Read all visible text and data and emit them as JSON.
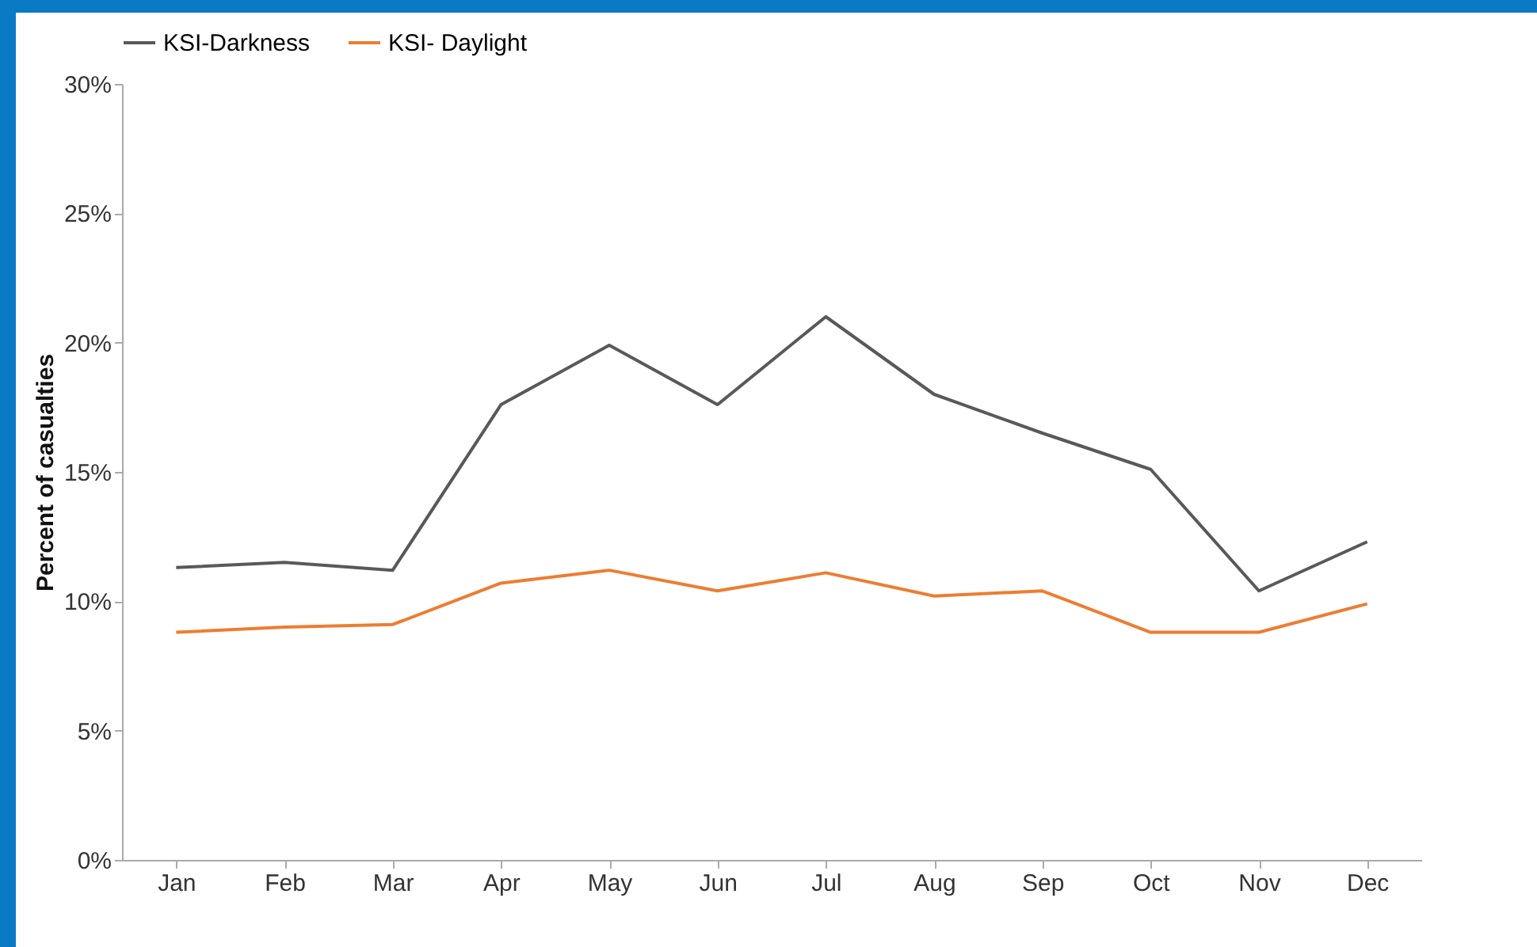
{
  "chart_data": {
    "type": "line",
    "ylabel": "Percent of casualties",
    "categories": [
      "Jan",
      "Feb",
      "Mar",
      "Apr",
      "May",
      "Jun",
      "Jul",
      "Aug",
      "Sep",
      "Oct",
      "Nov",
      "Dec"
    ],
    "series": [
      {
        "name": "KSI-Darkness",
        "color": "#595959",
        "values": [
          11.3,
          11.5,
          11.2,
          17.6,
          19.9,
          17.6,
          21.0,
          18.0,
          16.5,
          15.1,
          10.4,
          12.3
        ]
      },
      {
        "name": "KSI- Daylight",
        "color": "#ed7d31",
        "values": [
          8.8,
          9.0,
          9.1,
          10.7,
          11.2,
          10.4,
          11.1,
          10.2,
          10.4,
          8.8,
          8.8,
          9.9
        ]
      }
    ],
    "ylim": [
      0,
      30
    ],
    "yticks": [
      {
        "value": 0,
        "label": "0%"
      },
      {
        "value": 5,
        "label": "5%"
      },
      {
        "value": 10,
        "label": "10%"
      },
      {
        "value": 15,
        "label": "15%"
      },
      {
        "value": 20,
        "label": "20%"
      },
      {
        "value": 25,
        "label": "25%"
      },
      {
        "value": 30,
        "label": "30%"
      }
    ],
    "grid": false,
    "legend": "top",
    "marker": "none",
    "line_style": "solid"
  }
}
